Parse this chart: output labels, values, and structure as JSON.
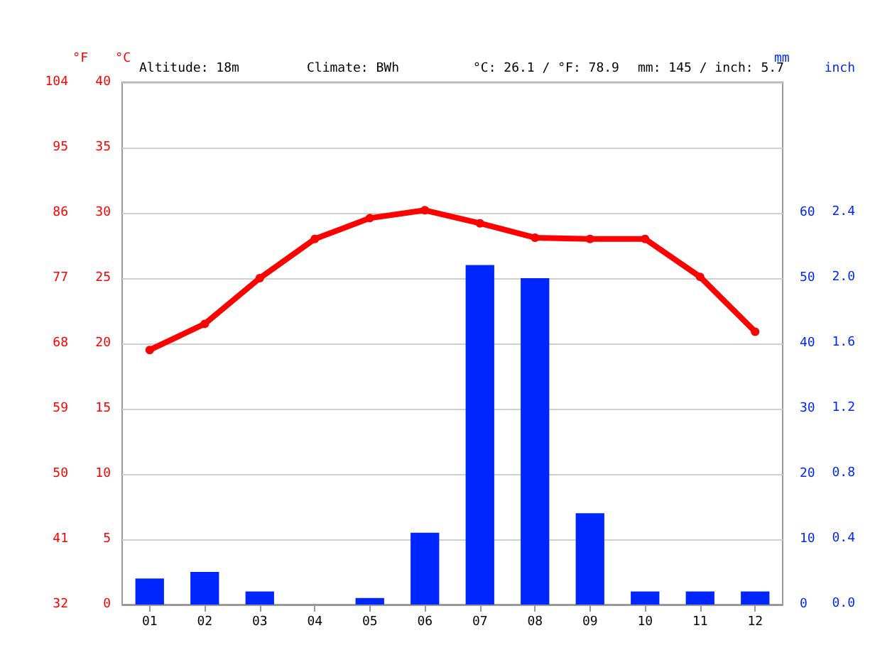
{
  "chart_data": {
    "type": "bar",
    "annotations": [
      "Altitude: 18m",
      "Climate: BWh",
      "°C: 26.1 / °F: 78.9",
      "mm: 145 / inch: 5.7",
      "inch",
      "0.0",
      "0.4",
      "0.8",
      "1.2",
      "1.6",
      "2.0",
      "2.4"
    ],
    "ylabel": "°C",
    "y2label": "mm",
    "y3label": "°F",
    "categories": [
      "01",
      "02",
      "03",
      "04",
      "05",
      "06",
      "07",
      "08",
      "09",
      "10",
      "11",
      "12"
    ],
    "series": [
      {
        "axis": "y2",
        "color": "#0026ff",
        "values": [
          4,
          5,
          2,
          0,
          1,
          11,
          52,
          50,
          14,
          2,
          2,
          2
        ]
      },
      {
        "type": "line",
        "axis": "y",
        "color": "#ff0000",
        "marker": "circle",
        "line_style": "solid",
        "values": [
          19.5,
          21.5,
          25.0,
          28.0,
          29.6,
          30.2,
          29.2,
          28.1,
          28.0,
          28.0,
          25.1,
          20.9
        ]
      }
    ],
    "ylim": [
      0,
      40
    ],
    "yticks": [
      0,
      5,
      10,
      15,
      20,
      25,
      30,
      35,
      40
    ],
    "y2lim": [
      0,
      80
    ],
    "y2ticks": [
      0,
      10,
      20,
      30,
      40,
      50,
      60
    ],
    "y3lim": [
      32,
      104
    ],
    "y3ticks": [
      32,
      41,
      50,
      59,
      68,
      77,
      86,
      95,
      104
    ],
    "grid": "y"
  }
}
